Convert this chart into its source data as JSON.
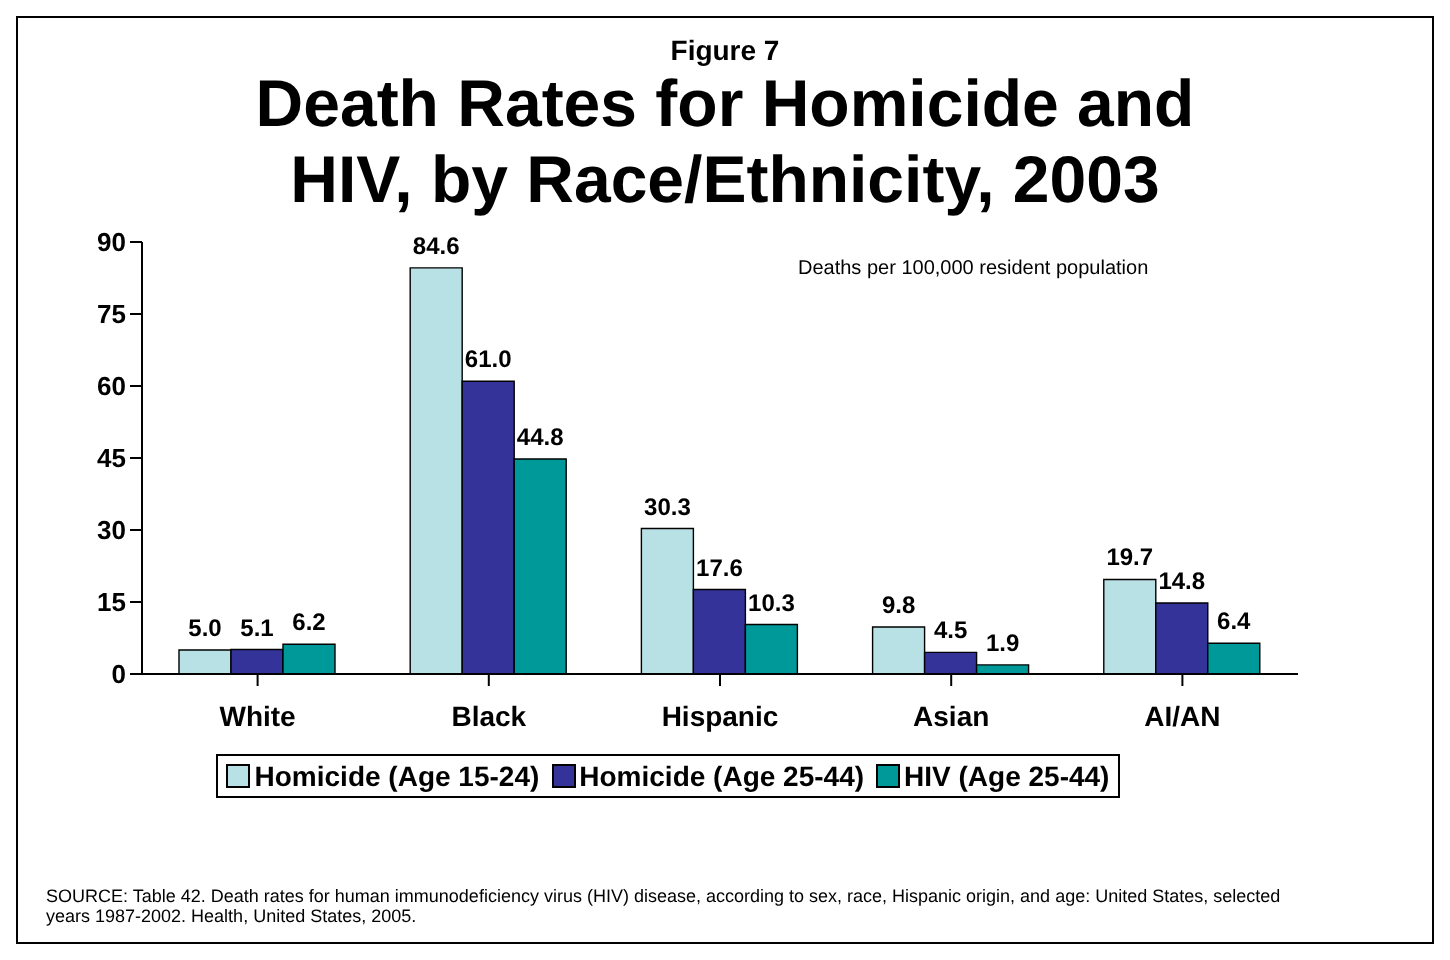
{
  "chart_data": {
    "type": "bar",
    "title": "Death Rates for Homicide and HIV, by Race/Ethnicity, 2003",
    "subtitle": "Figure 7",
    "categories": [
      "White",
      "Black",
      "Hispanic",
      "Asian",
      "AI/AN"
    ],
    "series": [
      {
        "name": "Homicide (Age 15-24)",
        "color": "#b7e1e4",
        "values": [
          5.0,
          84.6,
          30.3,
          9.8,
          19.7
        ],
        "value_labels": [
          "5.0",
          "84.6",
          "30.3",
          "9.8",
          "19.7"
        ]
      },
      {
        "name": "Homicide (Age 25-44)",
        "color": "#333399",
        "values": [
          5.1,
          61.0,
          17.6,
          4.5,
          14.8
        ],
        "value_labels": [
          "5.1",
          "61.0",
          "17.6",
          "4.5",
          "14.8"
        ]
      },
      {
        "name": "HIV (Age 25-44)",
        "color": "#009999",
        "values": [
          6.2,
          44.8,
          10.3,
          1.9,
          6.4
        ],
        "value_labels": [
          "6.2",
          "44.8",
          "10.3",
          "1.9",
          "6.4"
        ]
      }
    ],
    "ylim": [
      0,
      90
    ],
    "yticks": [
      0,
      15,
      30,
      45,
      60,
      75,
      90
    ],
    "grid": false,
    "legend": "bottom",
    "annotations": [
      "Deaths per 100,000 resident population",
      "SOURCE: Table 42. Death rates for human immunodeficiency virus (HIV) disease, according to sex, race, Hispanic origin, and age: United States, selected years 1987-2002. Health, United States, 2005."
    ]
  }
}
